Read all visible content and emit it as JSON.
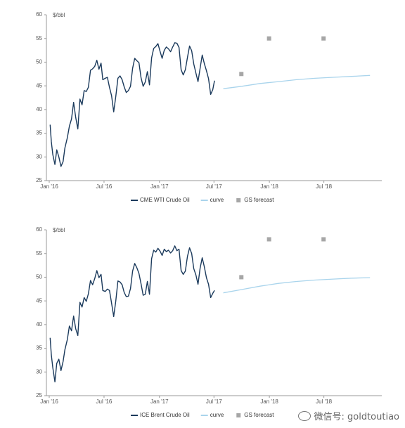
{
  "watermark": "微信号: goldtoutiao",
  "chart_data": [
    {
      "type": "line",
      "unit_label": "$/bbl",
      "ylim": [
        25,
        60
      ],
      "yticks": [
        25,
        30,
        35,
        40,
        45,
        50,
        55,
        60
      ],
      "xlim": [
        "2016-01-01",
        "2018-12-31"
      ],
      "xticks": [
        {
          "date": "2016-01-01",
          "label": "Jan '16"
        },
        {
          "date": "2016-07-01",
          "label": "Jul '16"
        },
        {
          "date": "2017-01-01",
          "label": "Jan '17"
        },
        {
          "date": "2017-07-01",
          "label": "Jul '17"
        },
        {
          "date": "2018-01-01",
          "label": "Jan '18"
        },
        {
          "date": "2018-07-01",
          "label": "Jul '18"
        }
      ],
      "legend": [
        "CME WTI Crude Oil",
        "curve",
        "GS forecast"
      ],
      "series": [
        {
          "name": "CME WTI Crude Oil",
          "color": "#1b3a5c",
          "points": [
            [
              "2016-01-04",
              36.8
            ],
            [
              "2016-01-08",
              33.2
            ],
            [
              "2016-01-13",
              30.5
            ],
            [
              "2016-01-20",
              28.4
            ],
            [
              "2016-01-26",
              31.5
            ],
            [
              "2016-02-02",
              30.0
            ],
            [
              "2016-02-09",
              28.0
            ],
            [
              "2016-02-16",
              29.0
            ],
            [
              "2016-02-22",
              31.9
            ],
            [
              "2016-03-01",
              34.0
            ],
            [
              "2016-03-08",
              36.5
            ],
            [
              "2016-03-15",
              38.0
            ],
            [
              "2016-03-22",
              41.5
            ],
            [
              "2016-03-29",
              38.3
            ],
            [
              "2016-04-05",
              35.9
            ],
            [
              "2016-04-12",
              42.2
            ],
            [
              "2016-04-19",
              41.0
            ],
            [
              "2016-04-26",
              44.0
            ],
            [
              "2016-05-03",
              43.8
            ],
            [
              "2016-05-10",
              44.7
            ],
            [
              "2016-05-17",
              48.3
            ],
            [
              "2016-05-24",
              48.6
            ],
            [
              "2016-05-31",
              49.1
            ],
            [
              "2016-06-07",
              50.4
            ],
            [
              "2016-06-14",
              48.5
            ],
            [
              "2016-06-21",
              49.8
            ],
            [
              "2016-06-27",
              46.3
            ],
            [
              "2016-07-05",
              46.6
            ],
            [
              "2016-07-12",
              46.8
            ],
            [
              "2016-07-19",
              44.7
            ],
            [
              "2016-07-26",
              42.9
            ],
            [
              "2016-08-02",
              39.5
            ],
            [
              "2016-08-09",
              42.8
            ],
            [
              "2016-08-16",
              46.6
            ],
            [
              "2016-08-23",
              47.1
            ],
            [
              "2016-08-30",
              46.3
            ],
            [
              "2016-09-06",
              44.8
            ],
            [
              "2016-09-13",
              43.6
            ],
            [
              "2016-09-20",
              44.0
            ],
            [
              "2016-09-27",
              44.9
            ],
            [
              "2016-10-04",
              48.7
            ],
            [
              "2016-10-11",
              50.8
            ],
            [
              "2016-10-18",
              50.3
            ],
            [
              "2016-10-25",
              49.9
            ],
            [
              "2016-11-01",
              46.7
            ],
            [
              "2016-11-08",
              44.9
            ],
            [
              "2016-11-15",
              45.8
            ],
            [
              "2016-11-22",
              48.0
            ],
            [
              "2016-11-29",
              45.2
            ],
            [
              "2016-12-06",
              50.9
            ],
            [
              "2016-12-13",
              52.9
            ],
            [
              "2016-12-20",
              53.3
            ],
            [
              "2016-12-27",
              53.9
            ],
            [
              "2017-01-03",
              52.3
            ],
            [
              "2017-01-10",
              50.8
            ],
            [
              "2017-01-17",
              52.5
            ],
            [
              "2017-01-24",
              53.2
            ],
            [
              "2017-01-31",
              52.8
            ],
            [
              "2017-02-07",
              52.2
            ],
            [
              "2017-02-14",
              53.2
            ],
            [
              "2017-02-21",
              54.1
            ],
            [
              "2017-02-28",
              54.0
            ],
            [
              "2017-03-07",
              53.1
            ],
            [
              "2017-03-14",
              48.4
            ],
            [
              "2017-03-21",
              47.3
            ],
            [
              "2017-03-28",
              48.4
            ],
            [
              "2017-04-04",
              51.0
            ],
            [
              "2017-04-11",
              53.4
            ],
            [
              "2017-04-18",
              52.4
            ],
            [
              "2017-04-25",
              49.6
            ],
            [
              "2017-05-02",
              47.7
            ],
            [
              "2017-05-09",
              45.9
            ],
            [
              "2017-05-16",
              48.7
            ],
            [
              "2017-05-23",
              51.5
            ],
            [
              "2017-05-30",
              49.7
            ],
            [
              "2017-06-06",
              48.2
            ],
            [
              "2017-06-13",
              46.5
            ],
            [
              "2017-06-20",
              43.2
            ],
            [
              "2017-06-27",
              44.2
            ],
            [
              "2017-07-03",
              46.1
            ]
          ]
        },
        {
          "name": "curve",
          "color": "#a9d4ec",
          "points": [
            [
              "2017-08-01",
              44.4
            ],
            [
              "2017-10-01",
              44.9
            ],
            [
              "2017-12-01",
              45.5
            ],
            [
              "2018-02-01",
              45.9
            ],
            [
              "2018-04-01",
              46.3
            ],
            [
              "2018-06-01",
              46.6
            ],
            [
              "2018-08-01",
              46.8
            ],
            [
              "2018-10-01",
              47.0
            ],
            [
              "2018-12-01",
              47.2
            ]
          ]
        },
        {
          "name": "GS forecast",
          "color": "#a6a6a6",
          "points": [
            [
              "2017-09-30",
              47.5
            ],
            [
              "2017-12-31",
              55.0
            ],
            [
              "2018-06-30",
              55.0
            ]
          ]
        }
      ]
    },
    {
      "type": "line",
      "unit_label": "$/bbl",
      "ylim": [
        25,
        60
      ],
      "yticks": [
        25,
        30,
        35,
        40,
        45,
        50,
        55,
        60
      ],
      "xlim": [
        "2016-01-01",
        "2018-12-31"
      ],
      "xticks": [
        {
          "date": "2016-01-01",
          "label": "Jan '16"
        },
        {
          "date": "2016-07-01",
          "label": "Jul '16"
        },
        {
          "date": "2017-01-01",
          "label": "Jan '17"
        },
        {
          "date": "2017-07-01",
          "label": "Jul '17"
        },
        {
          "date": "2018-01-01",
          "label": "Jan '18"
        },
        {
          "date": "2018-07-01",
          "label": "Jul '18"
        }
      ],
      "legend": [
        "ICE Brent Crude Oil",
        "curve",
        "GS forecast"
      ],
      "series": [
        {
          "name": "ICE Brent Crude Oil",
          "color": "#1b3a5c",
          "points": [
            [
              "2016-01-04",
              37.2
            ],
            [
              "2016-01-08",
              33.6
            ],
            [
              "2016-01-13",
              30.9
            ],
            [
              "2016-01-20",
              27.9
            ],
            [
              "2016-01-26",
              31.8
            ],
            [
              "2016-02-02",
              32.7
            ],
            [
              "2016-02-09",
              30.3
            ],
            [
              "2016-02-16",
              32.2
            ],
            [
              "2016-02-22",
              34.7
            ],
            [
              "2016-03-01",
              36.8
            ],
            [
              "2016-03-08",
              39.7
            ],
            [
              "2016-03-15",
              38.7
            ],
            [
              "2016-03-22",
              41.8
            ],
            [
              "2016-03-29",
              39.1
            ],
            [
              "2016-04-05",
              37.7
            ],
            [
              "2016-04-12",
              44.7
            ],
            [
              "2016-04-19",
              43.7
            ],
            [
              "2016-04-26",
              45.7
            ],
            [
              "2016-05-03",
              44.9
            ],
            [
              "2016-05-10",
              46.5
            ],
            [
              "2016-05-17",
              49.3
            ],
            [
              "2016-05-24",
              48.4
            ],
            [
              "2016-05-31",
              49.7
            ],
            [
              "2016-06-07",
              51.4
            ],
            [
              "2016-06-14",
              49.9
            ],
            [
              "2016-06-21",
              50.6
            ],
            [
              "2016-06-27",
              47.2
            ],
            [
              "2016-07-05",
              47.0
            ],
            [
              "2016-07-12",
              47.5
            ],
            [
              "2016-07-19",
              47.2
            ],
            [
              "2016-07-26",
              44.5
            ],
            [
              "2016-08-02",
              41.7
            ],
            [
              "2016-08-09",
              45.0
            ],
            [
              "2016-08-16",
              49.2
            ],
            [
              "2016-08-23",
              49.0
            ],
            [
              "2016-08-30",
              48.4
            ],
            [
              "2016-09-06",
              46.8
            ],
            [
              "2016-09-13",
              45.9
            ],
            [
              "2016-09-20",
              46.0
            ],
            [
              "2016-09-27",
              47.6
            ],
            [
              "2016-10-04",
              51.3
            ],
            [
              "2016-10-11",
              52.9
            ],
            [
              "2016-10-18",
              52.0
            ],
            [
              "2016-10-25",
              50.8
            ],
            [
              "2016-11-01",
              48.6
            ],
            [
              "2016-11-08",
              46.2
            ],
            [
              "2016-11-15",
              46.4
            ],
            [
              "2016-11-22",
              49.1
            ],
            [
              "2016-11-29",
              46.4
            ],
            [
              "2016-12-06",
              53.9
            ],
            [
              "2016-12-13",
              55.7
            ],
            [
              "2016-12-20",
              55.3
            ],
            [
              "2016-12-27",
              56.1
            ],
            [
              "2017-01-03",
              55.5
            ],
            [
              "2017-01-10",
              54.6
            ],
            [
              "2017-01-17",
              55.9
            ],
            [
              "2017-01-24",
              55.4
            ],
            [
              "2017-01-31",
              55.7
            ],
            [
              "2017-02-07",
              55.1
            ],
            [
              "2017-02-14",
              55.6
            ],
            [
              "2017-02-21",
              56.6
            ],
            [
              "2017-02-28",
              55.6
            ],
            [
              "2017-03-07",
              55.9
            ],
            [
              "2017-03-14",
              51.4
            ],
            [
              "2017-03-21",
              50.6
            ],
            [
              "2017-03-28",
              51.3
            ],
            [
              "2017-04-04",
              54.4
            ],
            [
              "2017-04-11",
              56.2
            ],
            [
              "2017-04-18",
              55.0
            ],
            [
              "2017-04-25",
              51.8
            ],
            [
              "2017-05-02",
              50.5
            ],
            [
              "2017-05-09",
              48.5
            ],
            [
              "2017-05-16",
              51.9
            ],
            [
              "2017-05-23",
              54.1
            ],
            [
              "2017-05-30",
              52.2
            ],
            [
              "2017-06-06",
              49.9
            ],
            [
              "2017-06-13",
              48.5
            ],
            [
              "2017-06-20",
              45.7
            ],
            [
              "2017-06-27",
              46.6
            ],
            [
              "2017-07-03",
              47.2
            ]
          ]
        },
        {
          "name": "curve",
          "color": "#a9d4ec",
          "points": [
            [
              "2017-08-01",
              46.7
            ],
            [
              "2017-10-01",
              47.4
            ],
            [
              "2017-12-01",
              48.1
            ],
            [
              "2018-02-01",
              48.7
            ],
            [
              "2018-04-01",
              49.1
            ],
            [
              "2018-06-01",
              49.4
            ],
            [
              "2018-08-01",
              49.6
            ],
            [
              "2018-10-01",
              49.8
            ],
            [
              "2018-12-01",
              49.9
            ]
          ]
        },
        {
          "name": "GS forecast",
          "color": "#a6a6a6",
          "points": [
            [
              "2017-09-30",
              50.0
            ],
            [
              "2017-12-31",
              58.0
            ],
            [
              "2018-06-30",
              58.0
            ]
          ]
        }
      ]
    }
  ]
}
